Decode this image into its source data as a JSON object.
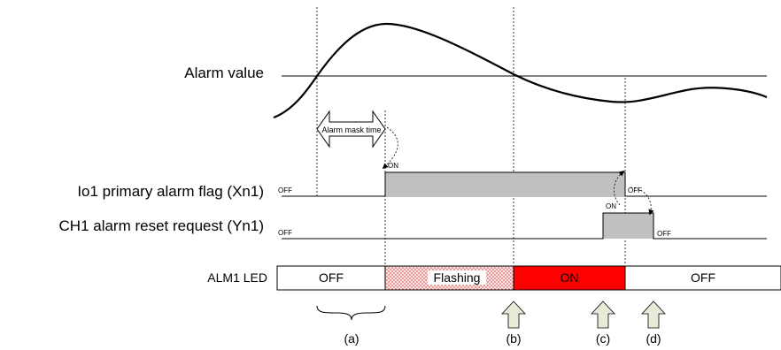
{
  "labels": {
    "alarm_value": "Alarm value",
    "alarm_mask_time": "Alarm mask time",
    "primary_alarm_flag": "Io1 primary alarm flag (Xn1)",
    "alarm_reset_request": "CH1 alarm reset request (Yn1)",
    "alm_led": "ALM1 LED"
  },
  "signals": {
    "flag_off_left": "OFF",
    "flag_on": "ON",
    "flag_off_right": "OFF",
    "reset_off_left": "OFF",
    "reset_on": "ON",
    "reset_off_right": "OFF"
  },
  "led_states": {
    "off_1": "OFF",
    "flashing": "Flashing",
    "on": "ON",
    "off_2": "OFF"
  },
  "markers": {
    "a": "(a)",
    "b": "(b)",
    "c": "(c)",
    "d": "(d)"
  },
  "colors": {
    "flag_fill": "#c0c0c0",
    "led_on": "#ff0000",
    "led_flashing_dots": "#e08080",
    "marker_arrow_fill": "#e6ecd8"
  }
}
